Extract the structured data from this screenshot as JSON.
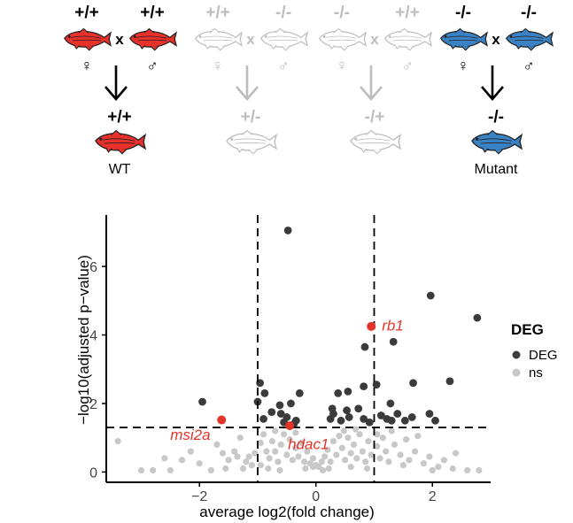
{
  "crosses": [
    {
      "genotypes": [
        "+/+",
        "+/+"
      ],
      "cross_symbol": "x",
      "sexes": [
        "♀",
        "♂"
      ],
      "offspring": "+/+",
      "label": "WT",
      "fish_color": "#e8312a",
      "active": true
    },
    {
      "genotypes": [
        "+/+",
        "-/-"
      ],
      "cross_symbol": "x",
      "sexes": [
        "♀",
        "♂"
      ],
      "offspring": "+/-",
      "label": "",
      "fish_color": "#ffffff",
      "active": false
    },
    {
      "genotypes": [
        "-/-",
        "+/+"
      ],
      "cross_symbol": "x",
      "sexes": [
        "♀",
        "♂"
      ],
      "offspring": "-/+",
      "label": "",
      "fish_color": "#ffffff",
      "active": false
    },
    {
      "genotypes": [
        "-/-",
        "-/-"
      ],
      "cross_symbol": "x",
      "sexes": [
        "♀",
        "♂"
      ],
      "offspring": "-/-",
      "label": "Mutant",
      "fish_color": "#3a82c4",
      "active": true
    }
  ],
  "colors": {
    "active_text": "#000000",
    "inactive": "#bdbdbd",
    "deg": "#3b3b3b",
    "ns": "#c8c8c8",
    "highlight": "#e3342a"
  },
  "chart_data": {
    "type": "scatter",
    "xlabel": "average log2(fold change)",
    "ylabel": "−log10(adjusted p−value)",
    "xlim": [
      -3.6,
      3.0
    ],
    "ylim": [
      -0.3,
      7.5
    ],
    "x_ticks": [
      -2,
      0,
      2
    ],
    "y_ticks": [
      0,
      2,
      4,
      6
    ],
    "x_tick_labels": [
      "−2",
      "0",
      "2"
    ],
    "y_tick_labels": [
      "0",
      "2",
      "4",
      "6"
    ],
    "thresholds": {
      "log2fc": [
        -1,
        1
      ],
      "neg_log10_p": 1.3
    },
    "grid": false,
    "legend": {
      "title": "DEG",
      "position": "right",
      "entries": [
        "DEG",
        "ns"
      ]
    },
    "series": [
      {
        "name": "DEG",
        "points": [
          [
            -0.48,
            7.05
          ],
          [
            1.97,
            5.15
          ],
          [
            2.77,
            4.5
          ],
          [
            1.33,
            3.8
          ],
          [
            0.84,
            3.65
          ],
          [
            2.3,
            2.65
          ],
          [
            1.04,
            2.55
          ],
          [
            1.67,
            2.6
          ],
          [
            -0.96,
            2.6
          ],
          [
            0.82,
            2.5
          ],
          [
            -1.95,
            2.05
          ],
          [
            -1.0,
            2.05
          ],
          [
            -0.62,
            1.95
          ],
          [
            -0.88,
            2.3
          ],
          [
            -0.43,
            2.0
          ],
          [
            -0.28,
            2.3
          ],
          [
            0.38,
            2.3
          ],
          [
            0.55,
            2.35
          ],
          [
            0.53,
            1.8
          ],
          [
            0.28,
            1.85
          ],
          [
            -0.76,
            1.75
          ],
          [
            -0.6,
            1.7
          ],
          [
            -0.9,
            1.55
          ],
          [
            -0.5,
            1.6
          ],
          [
            -0.38,
            1.4
          ],
          [
            -0.55,
            1.45
          ],
          [
            -0.34,
            1.5
          ],
          [
            0.43,
            1.5
          ],
          [
            0.3,
            1.7
          ],
          [
            0.57,
            1.6
          ],
          [
            0.25,
            1.55
          ],
          [
            0.92,
            1.45
          ],
          [
            1.12,
            1.65
          ],
          [
            1.22,
            1.55
          ],
          [
            1.28,
            2.0
          ],
          [
            1.4,
            1.7
          ],
          [
            1.3,
            1.5
          ],
          [
            1.53,
            1.5
          ],
          [
            1.65,
            1.6
          ],
          [
            1.95,
            1.7
          ],
          [
            2.05,
            1.5
          ],
          [
            0.73,
            1.85
          ],
          [
            0.82,
            1.55
          ]
        ]
      },
      {
        "name": "ns",
        "points": [
          [
            -3.4,
            0.9
          ],
          [
            -2.0,
            0.25
          ],
          [
            -2.3,
            0.35
          ],
          [
            -2.5,
            0.05
          ],
          [
            -2.8,
            0.05
          ],
          [
            -3.0,
            0.05
          ],
          [
            -1.8,
            0.05
          ],
          [
            -1.55,
            0.1
          ],
          [
            -1.5,
            0.35
          ],
          [
            -1.4,
            0.6
          ],
          [
            -1.35,
            0.45
          ],
          [
            -1.2,
            0.3
          ],
          [
            -1.15,
            0.45
          ],
          [
            -1.1,
            0.2
          ],
          [
            -1.05,
            0.55
          ],
          [
            -0.95,
            0.85
          ],
          [
            -0.9,
            1.1
          ],
          [
            -0.85,
            0.6
          ],
          [
            -0.8,
            0.4
          ],
          [
            -0.75,
            0.9
          ],
          [
            -0.7,
            0.6
          ],
          [
            -0.65,
            0.3
          ],
          [
            -0.6,
            0.8
          ],
          [
            -0.55,
            1.1
          ],
          [
            -0.5,
            0.5
          ],
          [
            -0.45,
            0.95
          ],
          [
            -0.4,
            0.35
          ],
          [
            -0.35,
            0.7
          ],
          [
            -0.3,
            0.45
          ],
          [
            -0.25,
            0.85
          ],
          [
            -0.2,
            0.3
          ],
          [
            -0.15,
            0.6
          ],
          [
            -0.1,
            0.25
          ],
          [
            -0.05,
            0.15
          ],
          [
            -0.05,
            0.4
          ],
          [
            0.0,
            0.2
          ],
          [
            0.05,
            0.15
          ],
          [
            0.1,
            0.3
          ],
          [
            0.15,
            0.45
          ],
          [
            0.2,
            0.65
          ],
          [
            0.25,
            0.3
          ],
          [
            0.3,
            0.9
          ],
          [
            0.35,
            0.5
          ],
          [
            0.4,
            1.05
          ],
          [
            0.45,
            0.7
          ],
          [
            0.5,
            0.35
          ],
          [
            0.55,
            1.0
          ],
          [
            0.6,
            0.55
          ],
          [
            0.65,
            0.8
          ],
          [
            0.7,
            0.4
          ],
          [
            0.75,
            1.1
          ],
          [
            0.8,
            0.6
          ],
          [
            0.85,
            0.3
          ],
          [
            0.9,
            0.9
          ],
          [
            0.95,
            0.5
          ],
          [
            1.05,
            0.75
          ],
          [
            1.1,
            0.4
          ],
          [
            1.15,
            1.0
          ],
          [
            1.2,
            0.6
          ],
          [
            1.25,
            0.3
          ],
          [
            1.35,
            0.8
          ],
          [
            1.45,
            0.5
          ],
          [
            1.55,
            0.95
          ],
          [
            1.6,
            0.35
          ],
          [
            1.7,
            0.6
          ],
          [
            1.85,
            0.25
          ],
          [
            1.95,
            0.45
          ],
          [
            2.0,
            0.05
          ],
          [
            2.1,
            0.15
          ],
          [
            2.2,
            0.35
          ],
          [
            2.35,
            0.1
          ],
          [
            2.6,
            0.05
          ],
          [
            2.8,
            0.05
          ],
          [
            -2.15,
            0.6
          ],
          [
            -1.7,
            0.8
          ],
          [
            -1.3,
            1.0
          ],
          [
            -0.95,
            0.2
          ],
          [
            -0.7,
            1.2
          ],
          [
            -0.62,
            0.05
          ],
          [
            -0.35,
            1.15
          ],
          [
            -0.18,
            0.1
          ],
          [
            0.12,
            0.05
          ],
          [
            0.22,
            0.1
          ],
          [
            0.48,
            1.2
          ],
          [
            0.68,
            1.25
          ],
          [
            1.05,
            1.1
          ],
          [
            1.3,
            1.2
          ],
          [
            1.75,
            1.05
          ],
          [
            -1.25,
            0.1
          ],
          [
            -0.82,
            0.1
          ],
          [
            0.6,
            0.15
          ],
          [
            0.88,
            0.1
          ],
          [
            1.5,
            0.2
          ],
          [
            -1.6,
            0.55
          ],
          [
            -2.6,
            0.4
          ],
          [
            2.4,
            0.55
          ]
        ]
      }
    ],
    "annotations": [
      {
        "text": "rb1",
        "x": 0.95,
        "y": 4.25
      },
      {
        "text": "msi2a",
        "x": -1.62,
        "y": 1.52
      },
      {
        "text": "hdac1",
        "x": -0.45,
        "y": 1.35
      }
    ]
  }
}
